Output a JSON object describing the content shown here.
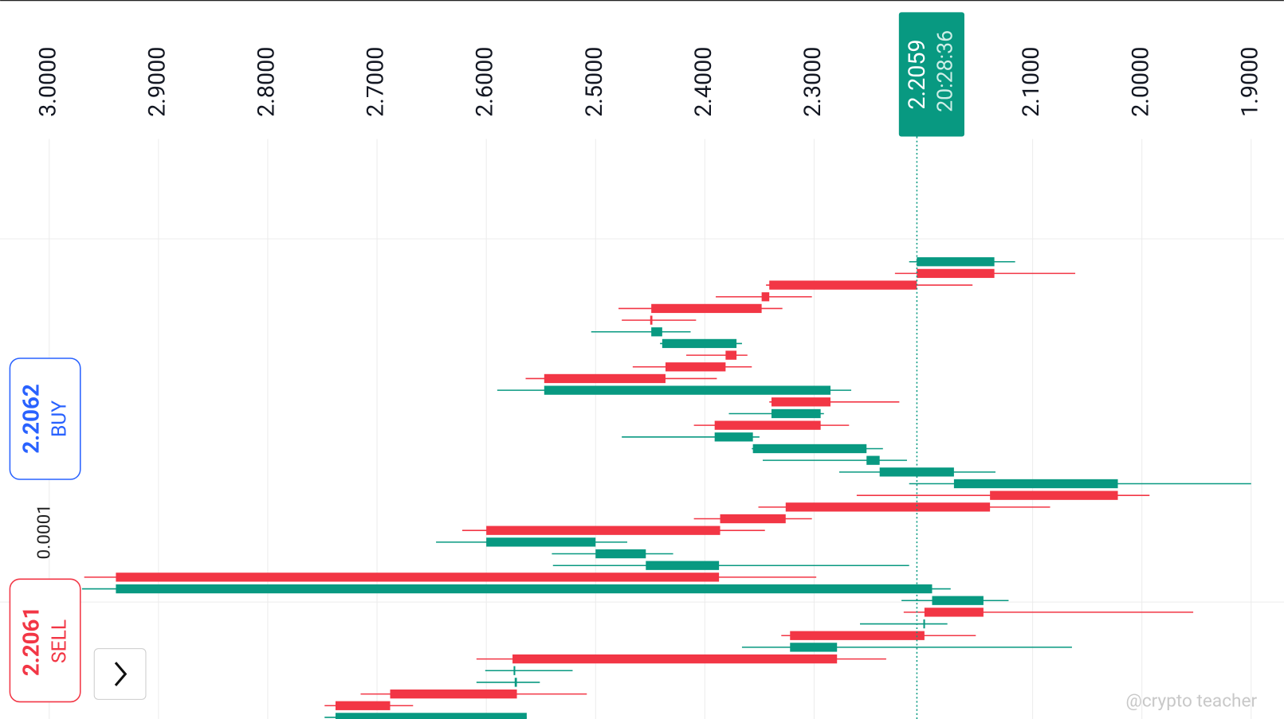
{
  "chart_data": {
    "type": "candlestick",
    "xlim": [
      3.045,
      1.87
    ],
    "xticks": [
      {
        "value": 3.0,
        "label": "3.0000"
      },
      {
        "value": 2.9,
        "label": "2.9000"
      },
      {
        "value": 2.8,
        "label": "2.8000"
      },
      {
        "value": 2.7,
        "label": "2.7000"
      },
      {
        "value": 2.6,
        "label": "2.6000"
      },
      {
        "value": 2.5,
        "label": "2.5000"
      },
      {
        "value": 2.4,
        "label": "2.4000"
      },
      {
        "value": 2.3,
        "label": "2.3000"
      },
      {
        "value": 2.1,
        "label": "2.1000"
      },
      {
        "value": 2.0,
        "label": "2.0000"
      },
      {
        "value": 1.9,
        "label": "1.9000"
      }
    ],
    "grid": true,
    "up_color": "#089981",
    "down_color": "#f23645",
    "current_price": 2.2059,
    "countdown": "20:28:36",
    "open": [
      2.135,
      2.206,
      2.341,
      2.348,
      2.449,
      2.45,
      2.439,
      2.371,
      2.381,
      2.436,
      2.547,
      2.285,
      2.339,
      2.294,
      2.391,
      2.356,
      2.252,
      2.24,
      2.172,
      2.022,
      2.139,
      2.326,
      2.386,
      2.6,
      2.5,
      2.454,
      2.387,
      2.939,
      2.192,
      2.145,
      2.199,
      2.199,
      2.322,
      2.279,
      2.576,
      2.574,
      2.572,
      2.688,
      2.738,
      2.563
    ],
    "high": [
      2.213,
      2.226,
      2.344,
      2.39,
      2.479,
      2.476,
      2.504,
      2.441,
      2.417,
      2.466,
      2.564,
      2.59,
      2.341,
      2.378,
      2.41,
      2.476,
      2.357,
      2.347,
      2.277,
      2.213,
      2.261,
      2.351,
      2.41,
      2.622,
      2.646,
      2.54,
      2.539,
      2.968,
      2.97,
      2.22,
      2.218,
      2.258,
      2.33,
      2.366,
      2.609,
      2.601,
      2.609,
      2.715,
      2.748,
      2.748
    ],
    "low": [
      2.116,
      2.061,
      2.155,
      2.302,
      2.329,
      2.408,
      2.413,
      2.366,
      2.361,
      2.357,
      2.389,
      2.266,
      2.222,
      2.291,
      2.268,
      2.35,
      2.237,
      2.215,
      2.134,
      1.9,
      1.993,
      2.084,
      2.302,
      2.345,
      2.471,
      2.429,
      2.213,
      2.298,
      2.175,
      2.122,
      1.953,
      2.178,
      2.152,
      2.064,
      2.234,
      2.521,
      2.551,
      2.508,
      2.667,
      2.563
    ],
    "close": [
      2.206,
      2.135,
      2.206,
      2.341,
      2.348,
      2.448,
      2.449,
      2.439,
      2.371,
      2.381,
      2.436,
      2.547,
      2.285,
      2.339,
      2.294,
      2.391,
      2.356,
      2.252,
      2.24,
      2.172,
      2.022,
      2.139,
      2.326,
      2.386,
      2.6,
      2.5,
      2.454,
      2.387,
      2.939,
      2.192,
      2.145,
      2.2,
      2.199,
      2.322,
      2.279,
      2.575,
      2.574,
      2.572,
      2.688,
      2.738
    ],
    "buy_price": 2.2062,
    "buy_label": "BUY",
    "sell_price": 2.2061,
    "sell_label": "SELL",
    "spread": 0.0001,
    "watermark": "@crypto teacher"
  }
}
